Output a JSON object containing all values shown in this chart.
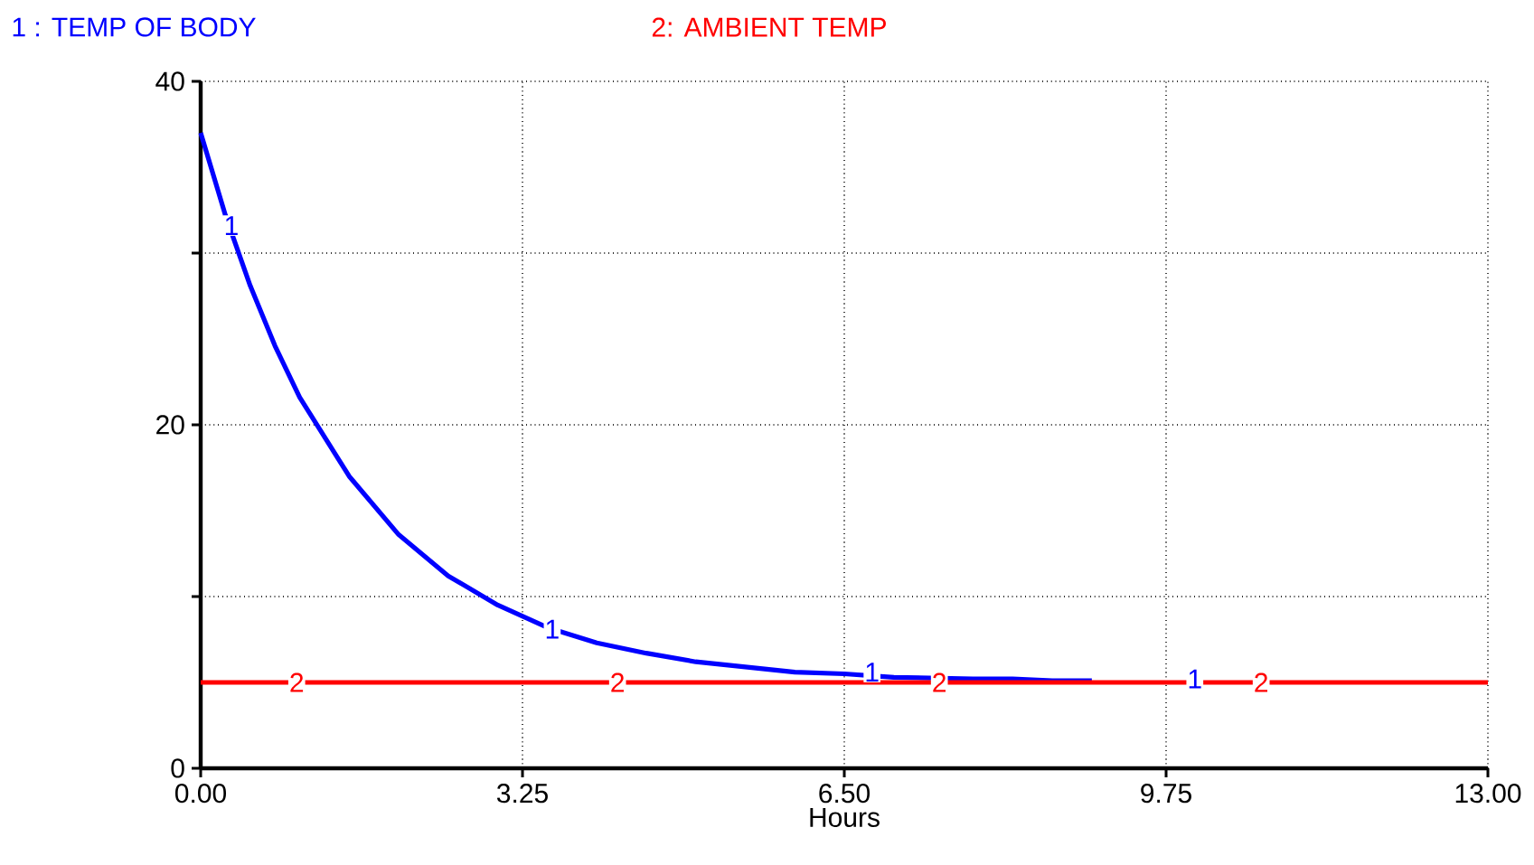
{
  "chart_data": {
    "type": "line",
    "xlabel": "Hours",
    "xlim": [
      0,
      13
    ],
    "ylim": [
      0,
      40
    ],
    "xticks": [
      {
        "value": 0,
        "label": "0.00"
      },
      {
        "value": 3.25,
        "label": "3.25"
      },
      {
        "value": 6.5,
        "label": "6.50"
      },
      {
        "value": 9.75,
        "label": "9.75"
      },
      {
        "value": 13,
        "label": "13.00"
      }
    ],
    "yticks": [
      0,
      {
        "value": 10,
        "label": null
      },
      20,
      {
        "value": 30,
        "label": null
      },
      40
    ],
    "grid": true,
    "legend": "top",
    "line_style": "solid",
    "series": [
      {
        "name": "1 : TEMP OF BODY",
        "color": "#0000ff",
        "x": [
          0,
          0.25,
          0.5,
          0.75,
          1,
          1.5,
          2,
          2.5,
          3,
          3.5,
          4,
          4.5,
          5,
          5.5,
          6,
          6.5,
          7,
          7.8,
          8.2,
          8.6,
          9
        ],
        "values": [
          37,
          32.2,
          28.1,
          24.6,
          21.6,
          17.0,
          13.6,
          11.2,
          9.5,
          8.2,
          7.3,
          6.7,
          6.2,
          5.9,
          5.6,
          5.5,
          5.3,
          5.2,
          5.2,
          5.1,
          5.1
        ]
      },
      {
        "name": "2: AMBIENT TEMP",
        "color": "#ff0000",
        "x": [
          0,
          13
        ],
        "values": [
          5,
          5
        ]
      }
    ],
    "annotations": [
      {
        "text": "1",
        "x": 0.31,
        "y": 31.6
      },
      {
        "text": "1",
        "x": 3.55,
        "y": 8.1
      },
      {
        "text": "1",
        "x": 6.78,
        "y": 5.6
      },
      {
        "text": "1",
        "x": 10.04,
        "y": 5.2
      },
      {
        "text": "2",
        "x": 0.97,
        "y": 5
      },
      {
        "text": "2",
        "x": 4.21,
        "y": 5
      },
      {
        "text": "2",
        "x": 7.46,
        "y": 5
      },
      {
        "text": "2",
        "x": 10.71,
        "y": 5
      }
    ]
  }
}
